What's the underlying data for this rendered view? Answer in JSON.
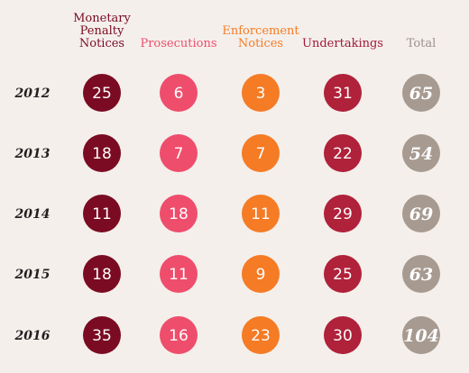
{
  "chart_data": {
    "type": "table",
    "columns": [
      {
        "label_lines": [
          "Monetary",
          "Penalty",
          "Notices"
        ],
        "color": "#7a0b22",
        "header_color": "#7a0b22"
      },
      {
        "label_lines": [
          "Prosecutions"
        ],
        "color": "#ef4d6c",
        "header_color": "#ef4d6c"
      },
      {
        "label_lines": [
          "Enforcement",
          "Notices"
        ],
        "color": "#f57b25",
        "header_color": "#f57b25"
      },
      {
        "label_lines": [
          "Undertakings"
        ],
        "color": "#b0213a",
        "header_color": "#a01934"
      },
      {
        "label_lines": [
          "Total"
        ],
        "color": "#a79a90",
        "header_color": "#9c918a"
      }
    ],
    "rows": [
      {
        "year": "2012",
        "values": [
          25,
          6,
          3,
          31,
          65
        ]
      },
      {
        "year": "2013",
        "values": [
          18,
          7,
          7,
          22,
          54
        ]
      },
      {
        "year": "2014",
        "values": [
          11,
          18,
          11,
          29,
          69
        ]
      },
      {
        "year": "2015",
        "values": [
          18,
          11,
          9,
          25,
          63
        ]
      },
      {
        "year": "2016",
        "values": [
          35,
          16,
          23,
          30,
          104
        ]
      }
    ]
  }
}
